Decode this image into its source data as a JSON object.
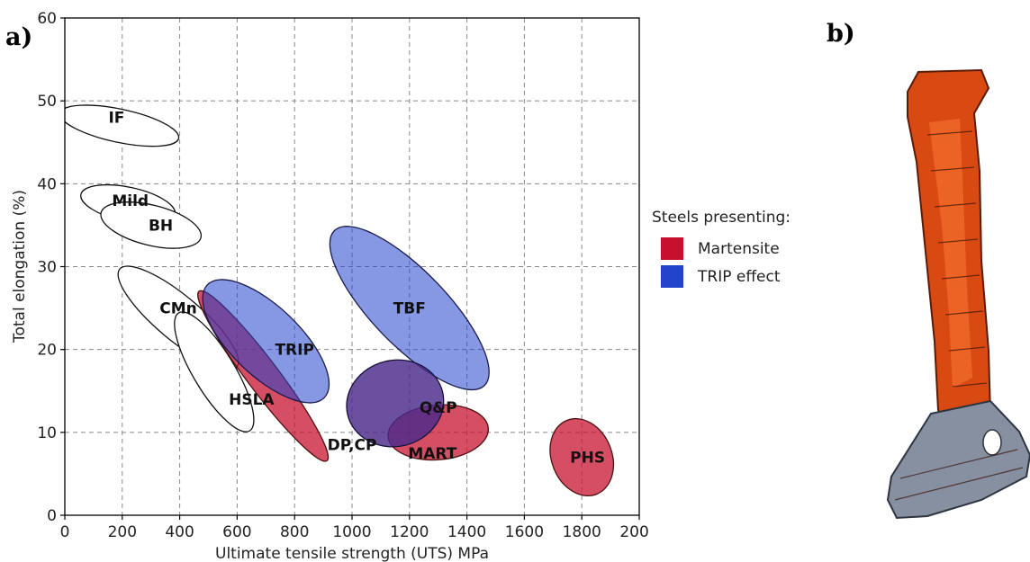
{
  "panel_a_label": "a)",
  "panel_b_label": "b)",
  "legend": {
    "title": "Steels presenting:",
    "items": [
      {
        "label": "Martensite",
        "color": "#c8102e"
      },
      {
        "label": "TRIP effect",
        "color": "#2244cc"
      }
    ]
  },
  "chart_data": {
    "type": "ellipse-region",
    "xlabel": "Ultimate tensile strength (UTS) MPa",
    "ylabel": "Total elongation (%)",
    "xlim": [
      0,
      2000
    ],
    "ylim": [
      0,
      60
    ],
    "xticks": [
      0,
      200,
      400,
      600,
      800,
      1000,
      1200,
      1400,
      1600,
      1800,
      2000
    ],
    "yticks": [
      0,
      10,
      20,
      30,
      40,
      50,
      60
    ],
    "grid": true,
    "legend_position": "right",
    "colors": {
      "white": "#ffffff",
      "martensite": "#c8102e",
      "trip": "#2244cc",
      "overlap": "#4b2a8a"
    },
    "regions": [
      {
        "label": "IF",
        "cx": 190,
        "cy": 47,
        "x_halfwidth": 58,
        "y_halfwidth": 7.3,
        "angle_deg": -78,
        "fill": "white",
        "label_at": [
          180,
          48
        ]
      },
      {
        "label": "Mild",
        "cx": 220,
        "cy": 37.5,
        "x_halfwidth": 60,
        "y_halfwidth": 5.8,
        "angle_deg": -78,
        "fill": "white",
        "label_at": [
          228,
          38
        ]
      },
      {
        "label": "BH",
        "cx": 300,
        "cy": 35,
        "x_halfwidth": 70,
        "y_halfwidth": 6.2,
        "angle_deg": -76,
        "fill": "white",
        "label_at": [
          334,
          35
        ]
      },
      {
        "label": "CMn",
        "cx": 395,
        "cy": 23.8,
        "x_halfwidth": 77,
        "y_halfwidth": 9.2,
        "angle_deg": -50,
        "fill": "white",
        "label_at": [
          395,
          25
        ]
      },
      {
        "label": "HSLA",
        "cx": 520,
        "cy": 17.3,
        "x_halfwidth": 72,
        "y_halfwidth": 8.3,
        "angle_deg": -31,
        "fill": "white",
        "label_at": [
          650,
          14
        ]
      },
      {
        "label": "DP,CP",
        "cx": 690,
        "cy": 16.8,
        "x_halfwidth": 55,
        "y_halfwidth": 12.8,
        "angle_deg": -37,
        "fill": "martensite",
        "label_at": [
          1000,
          8.5
        ]
      },
      {
        "label": "TRIP",
        "cx": 700,
        "cy": 21,
        "x_halfwidth": 120,
        "y_halfwidth": 9.8,
        "angle_deg": -46,
        "fill": "trip",
        "label_at": [
          800,
          20
        ]
      },
      {
        "label": "TBF",
        "cx": 1200,
        "cy": 25,
        "x_halfwidth": 130,
        "y_halfwidth": 13,
        "angle_deg": -44,
        "fill": "trip",
        "label_at": [
          1200,
          25
        ]
      },
      {
        "label": "MART",
        "cx": 1300,
        "cy": 10,
        "x_halfwidth": 175,
        "y_halfwidth": 3.3,
        "angle_deg": -5,
        "fill": "martensite",
        "label_at": [
          1280,
          7.5
        ]
      },
      {
        "label": "Q&P",
        "cx": 1150,
        "cy": 13.5,
        "x_halfwidth": 170,
        "y_halfwidth": 5.2,
        "angle_deg": -14,
        "fill": "overlap",
        "label_at": [
          1300,
          13
        ]
      },
      {
        "label": "PHS",
        "cx": 1800,
        "cy": 7,
        "x_halfwidth": 105,
        "y_halfwidth": 4.8,
        "angle_deg": -22,
        "fill": "martensite",
        "label_at": [
          1820,
          7
        ]
      }
    ]
  }
}
